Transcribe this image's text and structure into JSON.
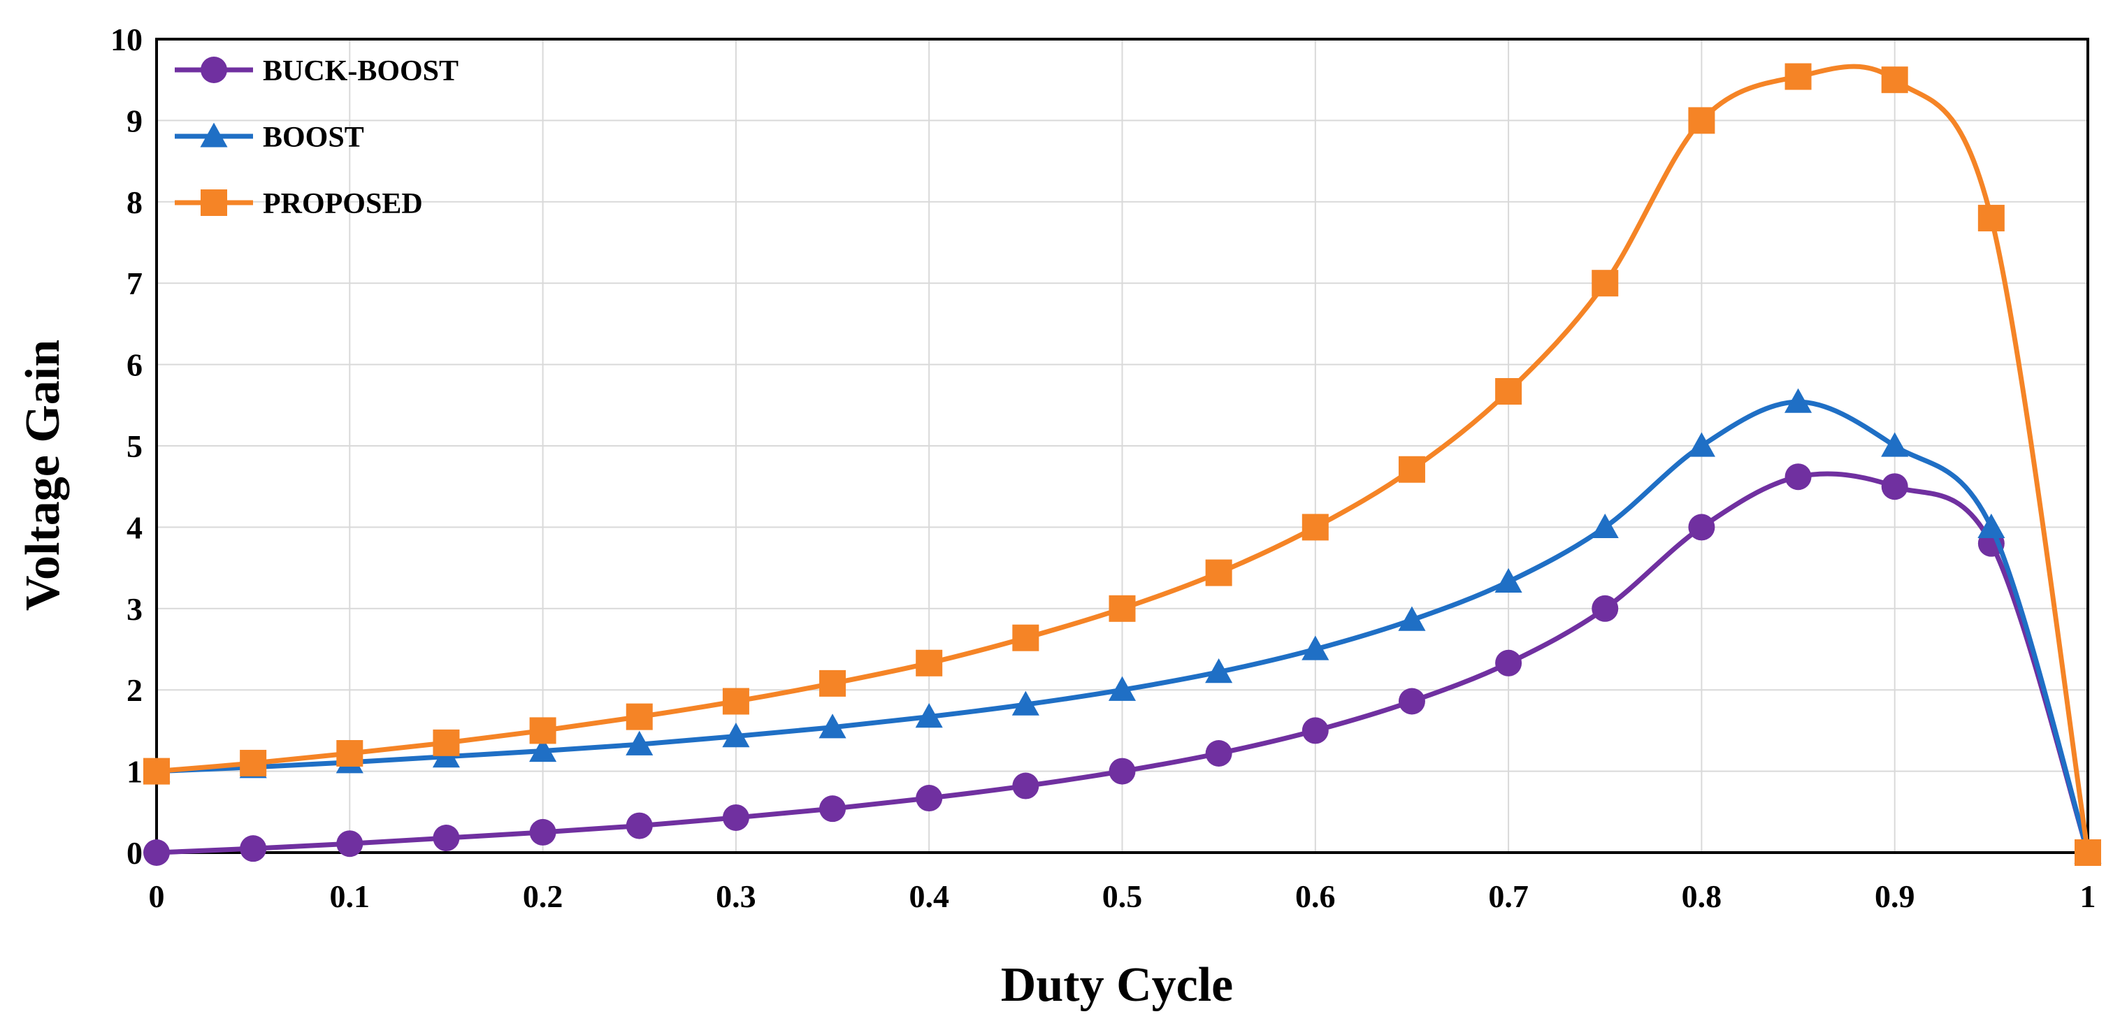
{
  "chart_data": {
    "type": "line",
    "title": "",
    "xlabel": "Duty Cycle",
    "ylabel": "Voltage Gain",
    "xlim": [
      0,
      1
    ],
    "ylim": [
      0,
      10
    ],
    "x_ticks": [
      "0",
      "0.1",
      "0.2",
      "0.3",
      "0.4",
      "0.5",
      "0.6",
      "0.7",
      "0.8",
      "0.9",
      "1"
    ],
    "y_ticks": [
      "0",
      "1",
      "2",
      "3",
      "4",
      "5",
      "6",
      "7",
      "8",
      "9",
      "10"
    ],
    "grid": true,
    "legend_position": "top-left",
    "x": [
      0,
      0.05,
      0.1,
      0.15,
      0.2,
      0.25,
      0.3,
      0.35,
      0.4,
      0.45,
      0.5,
      0.55,
      0.6,
      0.65,
      0.7,
      0.75,
      0.8,
      0.85,
      0.9,
      0.95,
      1
    ],
    "series": [
      {
        "name": "BUCK-BOOST",
        "color": "#7030a0",
        "marker": "circle",
        "values": [
          0,
          0.05,
          0.11,
          0.18,
          0.25,
          0.33,
          0.43,
          0.54,
          0.67,
          0.82,
          1.0,
          1.22,
          1.5,
          1.86,
          2.33,
          3.0,
          4.0,
          4.62,
          4.5,
          3.8,
          0
        ]
      },
      {
        "name": "BOOST",
        "color": "#1f6fc5",
        "marker": "triangle",
        "values": [
          1,
          1.05,
          1.11,
          1.18,
          1.25,
          1.33,
          1.43,
          1.54,
          1.67,
          1.82,
          2.0,
          2.22,
          2.5,
          2.86,
          3.33,
          4.0,
          5.0,
          5.54,
          5.0,
          4.0,
          0
        ]
      },
      {
        "name": "PROPOSED",
        "color": "#f58426",
        "marker": "square",
        "values": [
          1,
          1.1,
          1.22,
          1.35,
          1.5,
          1.67,
          1.86,
          2.08,
          2.33,
          2.64,
          3.0,
          3.44,
          4.0,
          4.71,
          5.67,
          7.0,
          9.0,
          9.54,
          9.5,
          7.8,
          0
        ]
      }
    ]
  }
}
